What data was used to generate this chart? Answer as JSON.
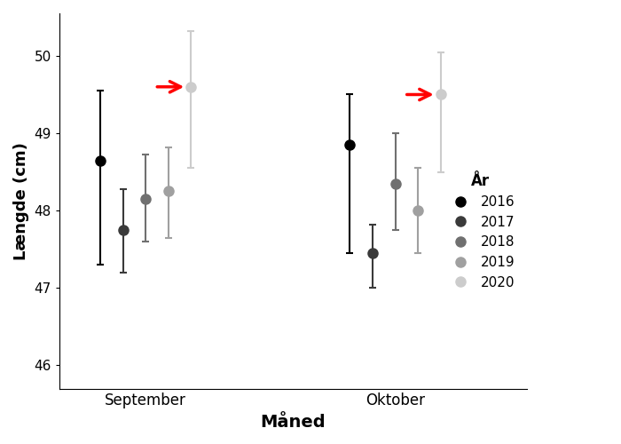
{
  "title": "",
  "xlabel": "Måned",
  "ylabel": "Længde (cm)",
  "ylim": [
    45.7,
    50.55
  ],
  "yticks": [
    46,
    47,
    48,
    49,
    50
  ],
  "months": [
    "September",
    "Oktober"
  ],
  "years": [
    "2016",
    "2017",
    "2018",
    "2019",
    "2020"
  ],
  "colors": {
    "2016": "#000000",
    "2017": "#3a3a3a",
    "2018": "#707070",
    "2019": "#a0a0a0",
    "2020": "#cccccc"
  },
  "data": {
    "September": {
      "2016": {
        "mean": 48.65,
        "lower": 47.3,
        "upper": 49.55
      },
      "2017": {
        "mean": 47.75,
        "lower": 47.2,
        "upper": 48.28
      },
      "2018": {
        "mean": 48.15,
        "lower": 47.6,
        "upper": 48.72
      },
      "2019": {
        "mean": 48.25,
        "lower": 47.65,
        "upper": 48.82
      },
      "2020": {
        "mean": 49.6,
        "lower": 48.55,
        "upper": 50.32
      }
    },
    "Oktober": {
      "2016": {
        "mean": 48.85,
        "lower": 47.45,
        "upper": 49.5
      },
      "2017": {
        "mean": 47.45,
        "lower": 47.0,
        "upper": 47.82
      },
      "2018": {
        "mean": 48.35,
        "lower": 47.75,
        "upper": 49.0
      },
      "2019": {
        "mean": 48.0,
        "lower": 47.45,
        "upper": 48.55
      },
      "2020": {
        "mean": 49.5,
        "lower": 48.5,
        "upper": 50.05
      }
    }
  },
  "legend_title": "År",
  "group_centers": [
    1.0,
    2.1
  ],
  "offsets": [
    -0.2,
    -0.1,
    0.0,
    0.1,
    0.2
  ],
  "xlim": [
    0.62,
    2.68
  ],
  "background_color": "#ffffff",
  "markersize": 8,
  "capsize": 3,
  "elinewidth": 1.5,
  "capthick": 1.5
}
